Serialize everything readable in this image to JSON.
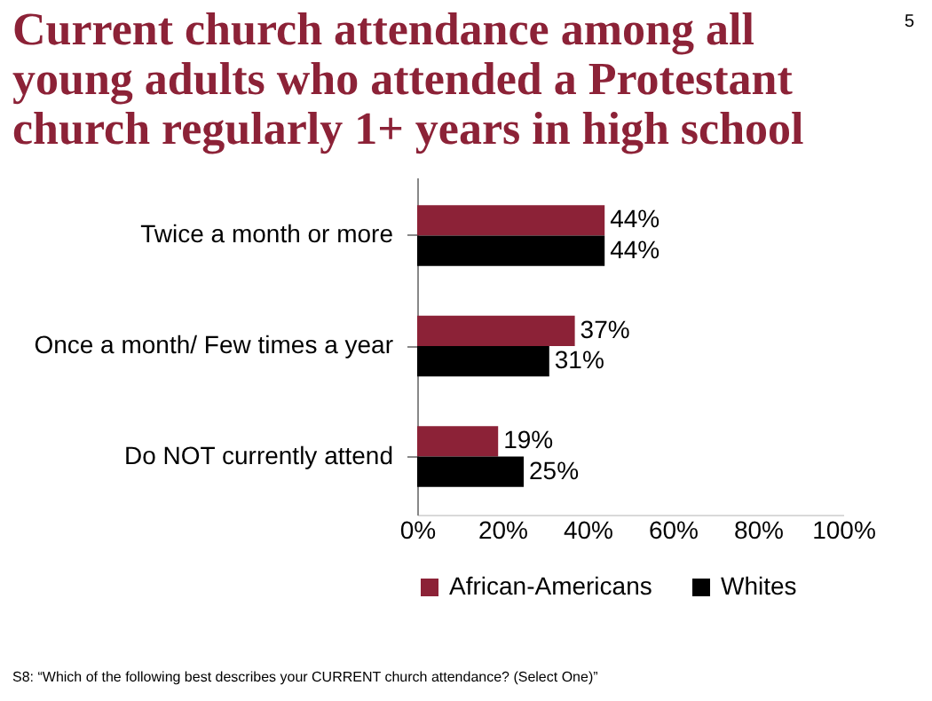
{
  "chart_data": {
    "type": "bar",
    "orientation": "horizontal",
    "title": "Current church attendance among all young adults who attended a Protestant church regularly 1+ years in high school",
    "categories": [
      "Twice a month or more",
      "Once a month/ Few times a year",
      "Do NOT currently attend"
    ],
    "series": [
      {
        "name": "African-Americans",
        "color": "#8c2237",
        "values": [
          44,
          37,
          19
        ],
        "value_labels": [
          "44%",
          "37%",
          "19%"
        ]
      },
      {
        "name": "Whites",
        "color": "#000000",
        "values": [
          44,
          31,
          25
        ],
        "value_labels": [
          "44%",
          "31%",
          "25%"
        ]
      }
    ],
    "xlim": [
      0,
      100
    ],
    "xticks": [
      {
        "value": 0,
        "label": "0%"
      },
      {
        "value": 20,
        "label": "20%"
      },
      {
        "value": 40,
        "label": "40%"
      },
      {
        "value": 60,
        "label": "60%"
      },
      {
        "value": 80,
        "label": "80%"
      },
      {
        "value": 100,
        "label": "100%"
      }
    ],
    "grid": false,
    "legend": "bottom",
    "annotations": [
      "5",
      "S8: “Which of the following best describes your CURRENT church attendance? (Select One)”"
    ]
  }
}
